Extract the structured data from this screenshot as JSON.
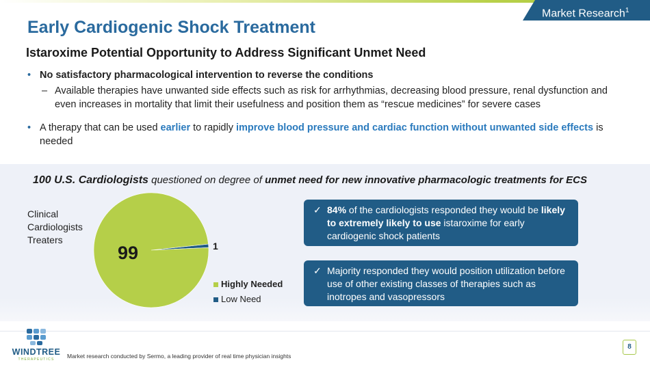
{
  "header": {
    "tag": "Market Research",
    "tag_sup": "1",
    "title": "Early Cardiogenic Shock Treatment",
    "subtitle": "Istaroxime Potential Opportunity to Address Significant Unmet Need"
  },
  "bullets": {
    "b1": "No satisfactory pharmacological intervention to reverse the conditions",
    "b1_sub": "Available therapies have unwanted side effects such as risk for arrhythmias, decreasing blood pressure, renal dysfunction and even increases in mortality that limit their usefulness and position them as “rescue medicines” for severe cases",
    "b2_a": "A therapy that can be used ",
    "b2_b": "earlier",
    "b2_c": " to rapidly ",
    "b2_d": "improve blood pressure and cardiac function without unwanted side effects",
    "b2_e": " is needed"
  },
  "survey": {
    "part1": "100 U.S. Cardiologists",
    "part2": " questioned on degree of ",
    "part3": "unmet need for new innovative pharmacologic treatments for ECS"
  },
  "chart_data": {
    "type": "pie",
    "title": "",
    "side_label": "Clinical Cardiologists Treaters",
    "categories": [
      "Highly Needed",
      "Low Need"
    ],
    "values": [
      99,
      1
    ],
    "colors": [
      "#b5cf49",
      "#215c86"
    ],
    "data_labels": [
      "99",
      "1"
    ],
    "legend_position": "bottom-right"
  },
  "callouts": {
    "c1_a": "84%",
    "c1_b": " of the cardiologists responded they would be ",
    "c1_c": "likely to extremely likely to use",
    "c1_d": " istaroxime for early cardiogenic shock patients",
    "c2": "Majority responded they would position utilization before use of other existing classes of therapies such as inotropes and vasopressors",
    "check_icon": "✓"
  },
  "footer": {
    "logo_text": "WINDTREE",
    "logo_sub": "THERAPEUTICS",
    "footnote": "Market research conducted by Sermo, a leading provider of real time physician insights",
    "page": "8"
  },
  "colors": {
    "brand_blue": "#215c86",
    "title_blue": "#2a6a9e",
    "accent_green": "#b5cf49"
  }
}
